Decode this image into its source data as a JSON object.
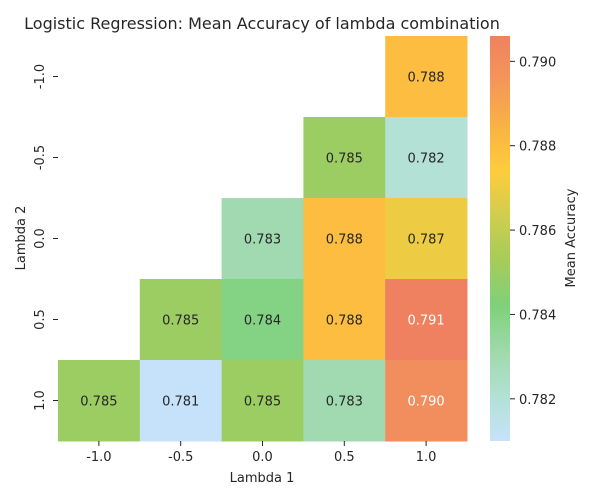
{
  "chart_data": {
    "type": "heatmap",
    "title": "Logistic Regression: Mean Accuracy of lambda combination",
    "xlabel": "Lambda 1",
    "ylabel": "Lambda 2",
    "x_categories": [
      "-1.0",
      "-0.5",
      "0.0",
      "0.5",
      "1.0"
    ],
    "y_categories": [
      "-1.0",
      "-0.5",
      "0.0",
      "0.5",
      "1.0"
    ],
    "values": [
      [
        null,
        null,
        null,
        null,
        0.788
      ],
      [
        null,
        null,
        null,
        0.785,
        0.782
      ],
      [
        null,
        null,
        0.783,
        0.788,
        0.787
      ],
      [
        null,
        0.785,
        0.784,
        0.788,
        0.791
      ],
      [
        0.785,
        0.781,
        0.785,
        0.783,
        0.79
      ]
    ],
    "cell_labels": [
      [
        null,
        null,
        null,
        null,
        "0.788"
      ],
      [
        null,
        null,
        null,
        "0.785",
        "0.782"
      ],
      [
        null,
        null,
        "0.783",
        "0.788",
        "0.787"
      ],
      [
        null,
        "0.785",
        "0.784",
        "0.788",
        "0.791"
      ],
      [
        "0.785",
        "0.781",
        "0.785",
        "0.783",
        "0.790"
      ]
    ],
    "colorbar": {
      "label": "Mean Accuracy",
      "range": [
        0.781,
        0.7906
      ],
      "ticks": [
        0.782,
        0.784,
        0.786,
        0.788,
        0.79
      ],
      "tick_labels": [
        "0.782",
        "0.784",
        "0.786",
        "0.788",
        "0.790"
      ],
      "colors": [
        "#c6e2fa",
        "#b2e1d4",
        "#9fd9ab",
        "#7ed17b",
        "#a6cc5a",
        "#cfcd4f",
        "#ffcc3d",
        "#f9b244",
        "#f4965a",
        "#ef8160"
      ]
    }
  }
}
